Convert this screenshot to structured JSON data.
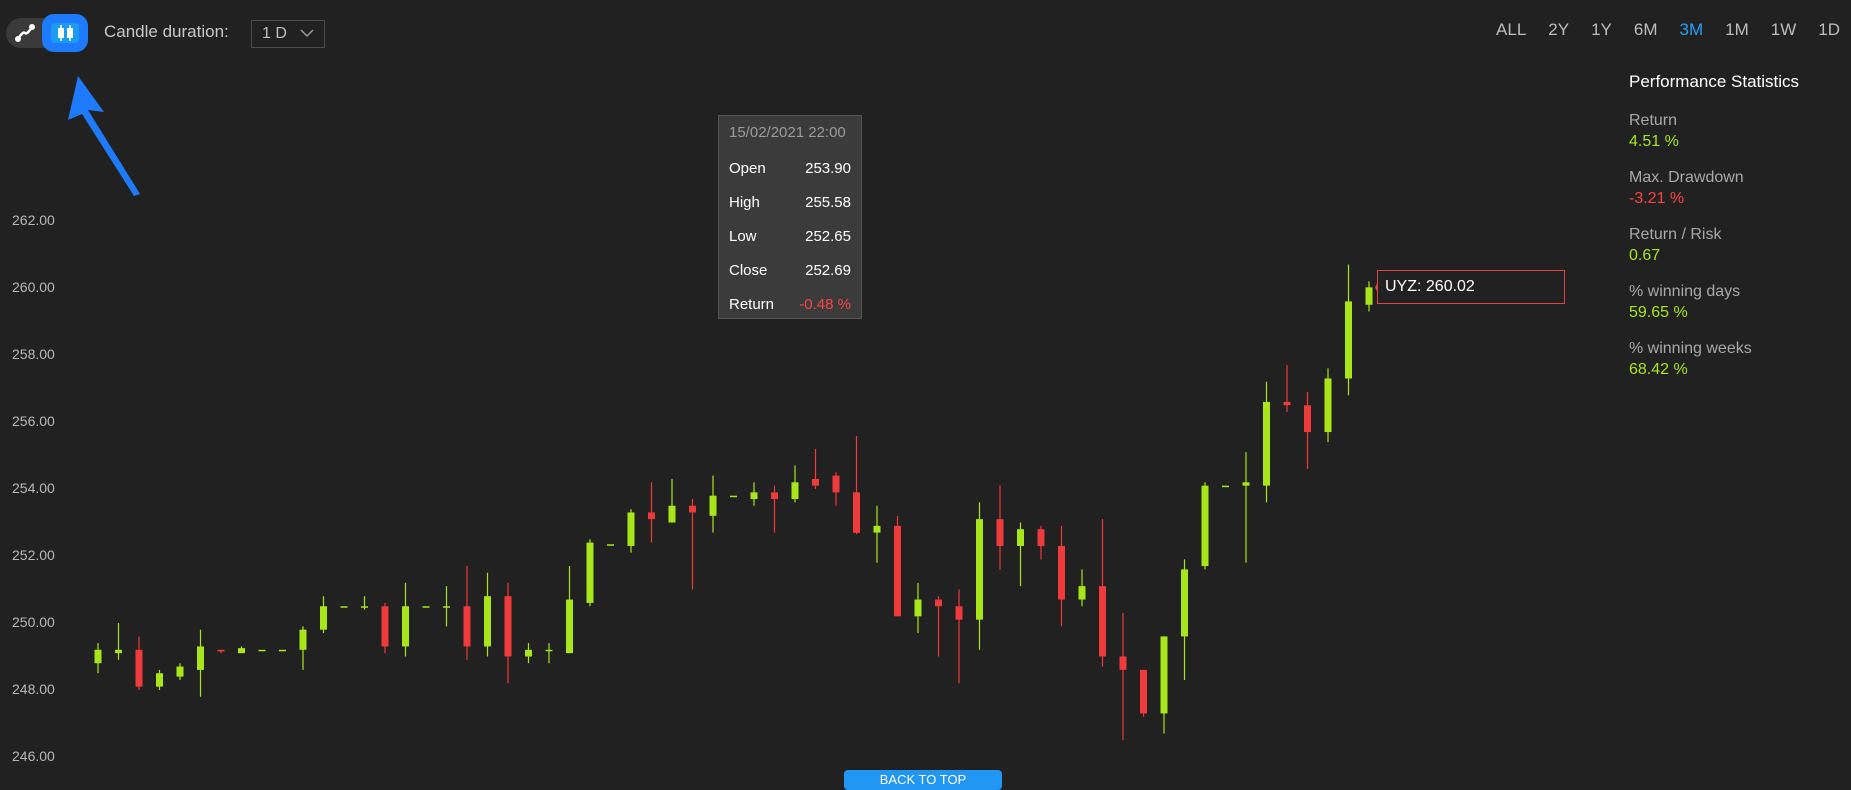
{
  "toolbar": {
    "candle_duration_label": "Candle duration:",
    "candle_duration_value": "1 D",
    "chart_type_options": [
      "line",
      "candlestick"
    ],
    "chart_type_selected": "candlestick",
    "ranges": [
      "ALL",
      "2Y",
      "1Y",
      "6M",
      "3M",
      "1M",
      "1W",
      "1D"
    ],
    "active_range": "3M"
  },
  "stats": {
    "title": "Performance Statistics",
    "items": [
      {
        "label": "Return",
        "value": "4.51 %",
        "tone": "positive"
      },
      {
        "label": "Max. Drawdown",
        "value": "-3.21 %",
        "tone": "negative"
      },
      {
        "label": "Return / Risk",
        "value": "0.67",
        "tone": "positive"
      },
      {
        "label": "% winning days",
        "value": "59.65 %",
        "tone": "positive"
      },
      {
        "label": "% winning weeks",
        "value": "68.42 %",
        "tone": "positive"
      }
    ]
  },
  "tooltip": {
    "date": "15/02/2021 22:00",
    "rows": [
      {
        "label": "Open",
        "value": "253.90"
      },
      {
        "label": "High",
        "value": "255.58"
      },
      {
        "label": "Low",
        "value": "252.65"
      },
      {
        "label": "Close",
        "value": "252.69"
      },
      {
        "label": "Return",
        "value": "-0.48 %"
      }
    ]
  },
  "last_price_label": "UYZ: 260.02",
  "back_to_top_label": "BACK TO TOP",
  "colors": {
    "up": "#a8e619",
    "down": "#ef3b3b",
    "accent": "#21a3f5",
    "background": "#212121"
  },
  "chart_data": {
    "type": "candlestick",
    "symbol": "UYZ",
    "ylim": [
      245.5,
      263.2
    ],
    "yticks": [
      "262.00",
      "260.00",
      "258.00",
      "256.00",
      "254.00",
      "252.00",
      "250.00",
      "248.00",
      "246.00"
    ],
    "candles": [
      {
        "o": 248.8,
        "h": 249.4,
        "l": 248.5,
        "c": 249.2
      },
      {
        "o": 249.1,
        "h": 250.0,
        "l": 248.9,
        "c": 249.2
      },
      {
        "o": 249.2,
        "h": 249.6,
        "l": 248.0,
        "c": 248.1
      },
      {
        "o": 248.1,
        "h": 248.6,
        "l": 248.0,
        "c": 248.5
      },
      {
        "o": 248.4,
        "h": 248.8,
        "l": 248.3,
        "c": 248.7
      },
      {
        "o": 248.6,
        "h": 249.8,
        "l": 247.8,
        "c": 249.3
      },
      {
        "o": 249.2,
        "h": 249.2,
        "l": 249.1,
        "c": 249.15
      },
      {
        "o": 249.1,
        "h": 249.3,
        "l": 249.1,
        "c": 249.25
      },
      {
        "o": 249.2,
        "h": 249.2,
        "l": 249.2,
        "c": 249.2
      },
      {
        "o": 249.2,
        "h": 249.2,
        "l": 249.2,
        "c": 249.2
      },
      {
        "o": 249.2,
        "h": 249.9,
        "l": 248.6,
        "c": 249.8
      },
      {
        "o": 249.8,
        "h": 250.8,
        "l": 249.7,
        "c": 250.5
      },
      {
        "o": 250.5,
        "h": 250.5,
        "l": 250.5,
        "c": 250.5
      },
      {
        "o": 250.5,
        "h": 250.8,
        "l": 250.4,
        "c": 250.5
      },
      {
        "o": 250.5,
        "h": 250.6,
        "l": 249.1,
        "c": 249.3
      },
      {
        "o": 249.3,
        "h": 251.2,
        "l": 249.0,
        "c": 250.5
      },
      {
        "o": 250.5,
        "h": 250.5,
        "l": 250.5,
        "c": 250.5
      },
      {
        "o": 250.5,
        "h": 251.1,
        "l": 249.9,
        "c": 250.5
      },
      {
        "o": 250.5,
        "h": 251.7,
        "l": 248.9,
        "c": 249.3
      },
      {
        "o": 249.3,
        "h": 251.5,
        "l": 249.0,
        "c": 250.8
      },
      {
        "o": 250.8,
        "h": 251.2,
        "l": 248.2,
        "c": 249.0
      },
      {
        "o": 249.0,
        "h": 249.4,
        "l": 248.8,
        "c": 249.2
      },
      {
        "o": 249.2,
        "h": 249.4,
        "l": 248.8,
        "c": 249.2
      },
      {
        "o": 249.1,
        "h": 251.7,
        "l": 249.1,
        "c": 250.7
      },
      {
        "o": 250.6,
        "h": 252.5,
        "l": 250.5,
        "c": 252.4
      },
      {
        "o": 252.35,
        "h": 252.35,
        "l": 252.35,
        "c": 252.35
      },
      {
        "o": 252.3,
        "h": 253.4,
        "l": 252.1,
        "c": 253.3
      },
      {
        "o": 253.3,
        "h": 254.2,
        "l": 252.4,
        "c": 253.1
      },
      {
        "o": 253.0,
        "h": 254.3,
        "l": 253.0,
        "c": 253.5
      },
      {
        "o": 253.5,
        "h": 253.7,
        "l": 251.0,
        "c": 253.3
      },
      {
        "o": 253.2,
        "h": 254.4,
        "l": 252.7,
        "c": 253.8
      },
      {
        "o": 253.8,
        "h": 253.8,
        "l": 253.8,
        "c": 253.8
      },
      {
        "o": 253.7,
        "h": 254.2,
        "l": 253.5,
        "c": 253.9
      },
      {
        "o": 253.9,
        "h": 254.1,
        "l": 252.7,
        "c": 253.7
      },
      {
        "o": 253.7,
        "h": 254.7,
        "l": 253.6,
        "c": 254.2
      },
      {
        "o": 254.3,
        "h": 255.2,
        "l": 254.0,
        "c": 254.1
      },
      {
        "o": 254.4,
        "h": 254.5,
        "l": 253.5,
        "c": 253.9
      },
      {
        "o": 253.9,
        "h": 255.58,
        "l": 252.65,
        "c": 252.69
      },
      {
        "o": 252.7,
        "h": 253.5,
        "l": 251.8,
        "c": 252.9
      },
      {
        "o": 252.9,
        "h": 253.2,
        "l": 250.2,
        "c": 250.2
      },
      {
        "o": 250.2,
        "h": 251.2,
        "l": 249.7,
        "c": 250.7
      },
      {
        "o": 250.7,
        "h": 250.8,
        "l": 249.0,
        "c": 250.5
      },
      {
        "o": 250.5,
        "h": 251.0,
        "l": 248.2,
        "c": 250.1
      },
      {
        "o": 250.1,
        "h": 253.6,
        "l": 249.2,
        "c": 253.1
      },
      {
        "o": 253.1,
        "h": 254.1,
        "l": 251.6,
        "c": 252.3
      },
      {
        "o": 252.3,
        "h": 253.0,
        "l": 251.1,
        "c": 252.8
      },
      {
        "o": 252.8,
        "h": 252.9,
        "l": 251.9,
        "c": 252.3
      },
      {
        "o": 252.3,
        "h": 252.9,
        "l": 249.9,
        "c": 250.7
      },
      {
        "o": 250.7,
        "h": 251.6,
        "l": 250.5,
        "c": 251.1
      },
      {
        "o": 251.1,
        "h": 253.1,
        "l": 248.7,
        "c": 249.0
      },
      {
        "o": 249.0,
        "h": 250.3,
        "l": 246.5,
        "c": 248.6
      },
      {
        "o": 248.6,
        "h": 248.6,
        "l": 247.2,
        "c": 247.3
      },
      {
        "o": 247.3,
        "h": 249.6,
        "l": 246.7,
        "c": 249.6
      },
      {
        "o": 249.6,
        "h": 251.9,
        "l": 248.3,
        "c": 251.6
      },
      {
        "o": 251.7,
        "h": 254.2,
        "l": 251.6,
        "c": 254.1
      },
      {
        "o": 254.1,
        "h": 254.1,
        "l": 254.1,
        "c": 254.1
      },
      {
        "o": 254.1,
        "h": 255.1,
        "l": 251.8,
        "c": 254.2
      },
      {
        "o": 254.1,
        "h": 257.2,
        "l": 253.6,
        "c": 256.6
      },
      {
        "o": 256.6,
        "h": 257.7,
        "l": 256.3,
        "c": 256.5
      },
      {
        "o": 256.5,
        "h": 256.9,
        "l": 254.6,
        "c": 255.7
      },
      {
        "o": 255.7,
        "h": 257.6,
        "l": 255.4,
        "c": 257.3
      },
      {
        "o": 257.3,
        "h": 260.7,
        "l": 256.8,
        "c": 259.6
      },
      {
        "o": 259.5,
        "h": 260.2,
        "l": 259.3,
        "c": 260.02
      }
    ]
  }
}
